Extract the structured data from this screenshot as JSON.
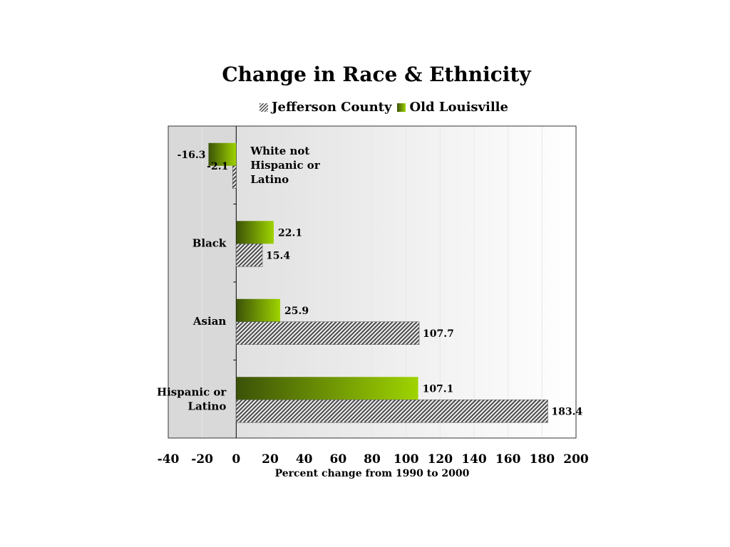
{
  "chart_data": {
    "type": "bar",
    "orientation": "horizontal",
    "title": "Change in Race & Ethnicity",
    "xlabel": "Percent change from 1990 to 2000",
    "ylabel": "",
    "xlim": [
      -40,
      200
    ],
    "xticks": [
      -40,
      -20,
      0,
      20,
      40,
      60,
      80,
      100,
      120,
      140,
      160,
      180,
      200
    ],
    "categories": [
      "White not Hispanic or Latino",
      "Black",
      "Asian",
      "Hispanic or Latino"
    ],
    "category_label_lines": [
      [
        "White not",
        "Hispanic or",
        "Latino"
      ],
      [
        "Black"
      ],
      [
        "Asian"
      ],
      [
        "Hispanic or",
        "Latino"
      ]
    ],
    "series": [
      {
        "name": "Jefferson County",
        "values": [
          -2.1,
          15.4,
          107.7,
          183.4
        ],
        "labels": [
          "-2.1",
          "15.4",
          "107.7",
          "183.4"
        ],
        "pattern": "hatched",
        "color": "#555555"
      },
      {
        "name": "Old Louisville",
        "values": [
          -16.3,
          22.1,
          25.9,
          107.1
        ],
        "labels": [
          "-16.3",
          "22.1",
          "25.9",
          "107.1"
        ],
        "pattern": "gradient",
        "color_start": "#3b5208",
        "color_end": "#9fd400"
      }
    ],
    "legend_position": "top",
    "grid": true
  }
}
